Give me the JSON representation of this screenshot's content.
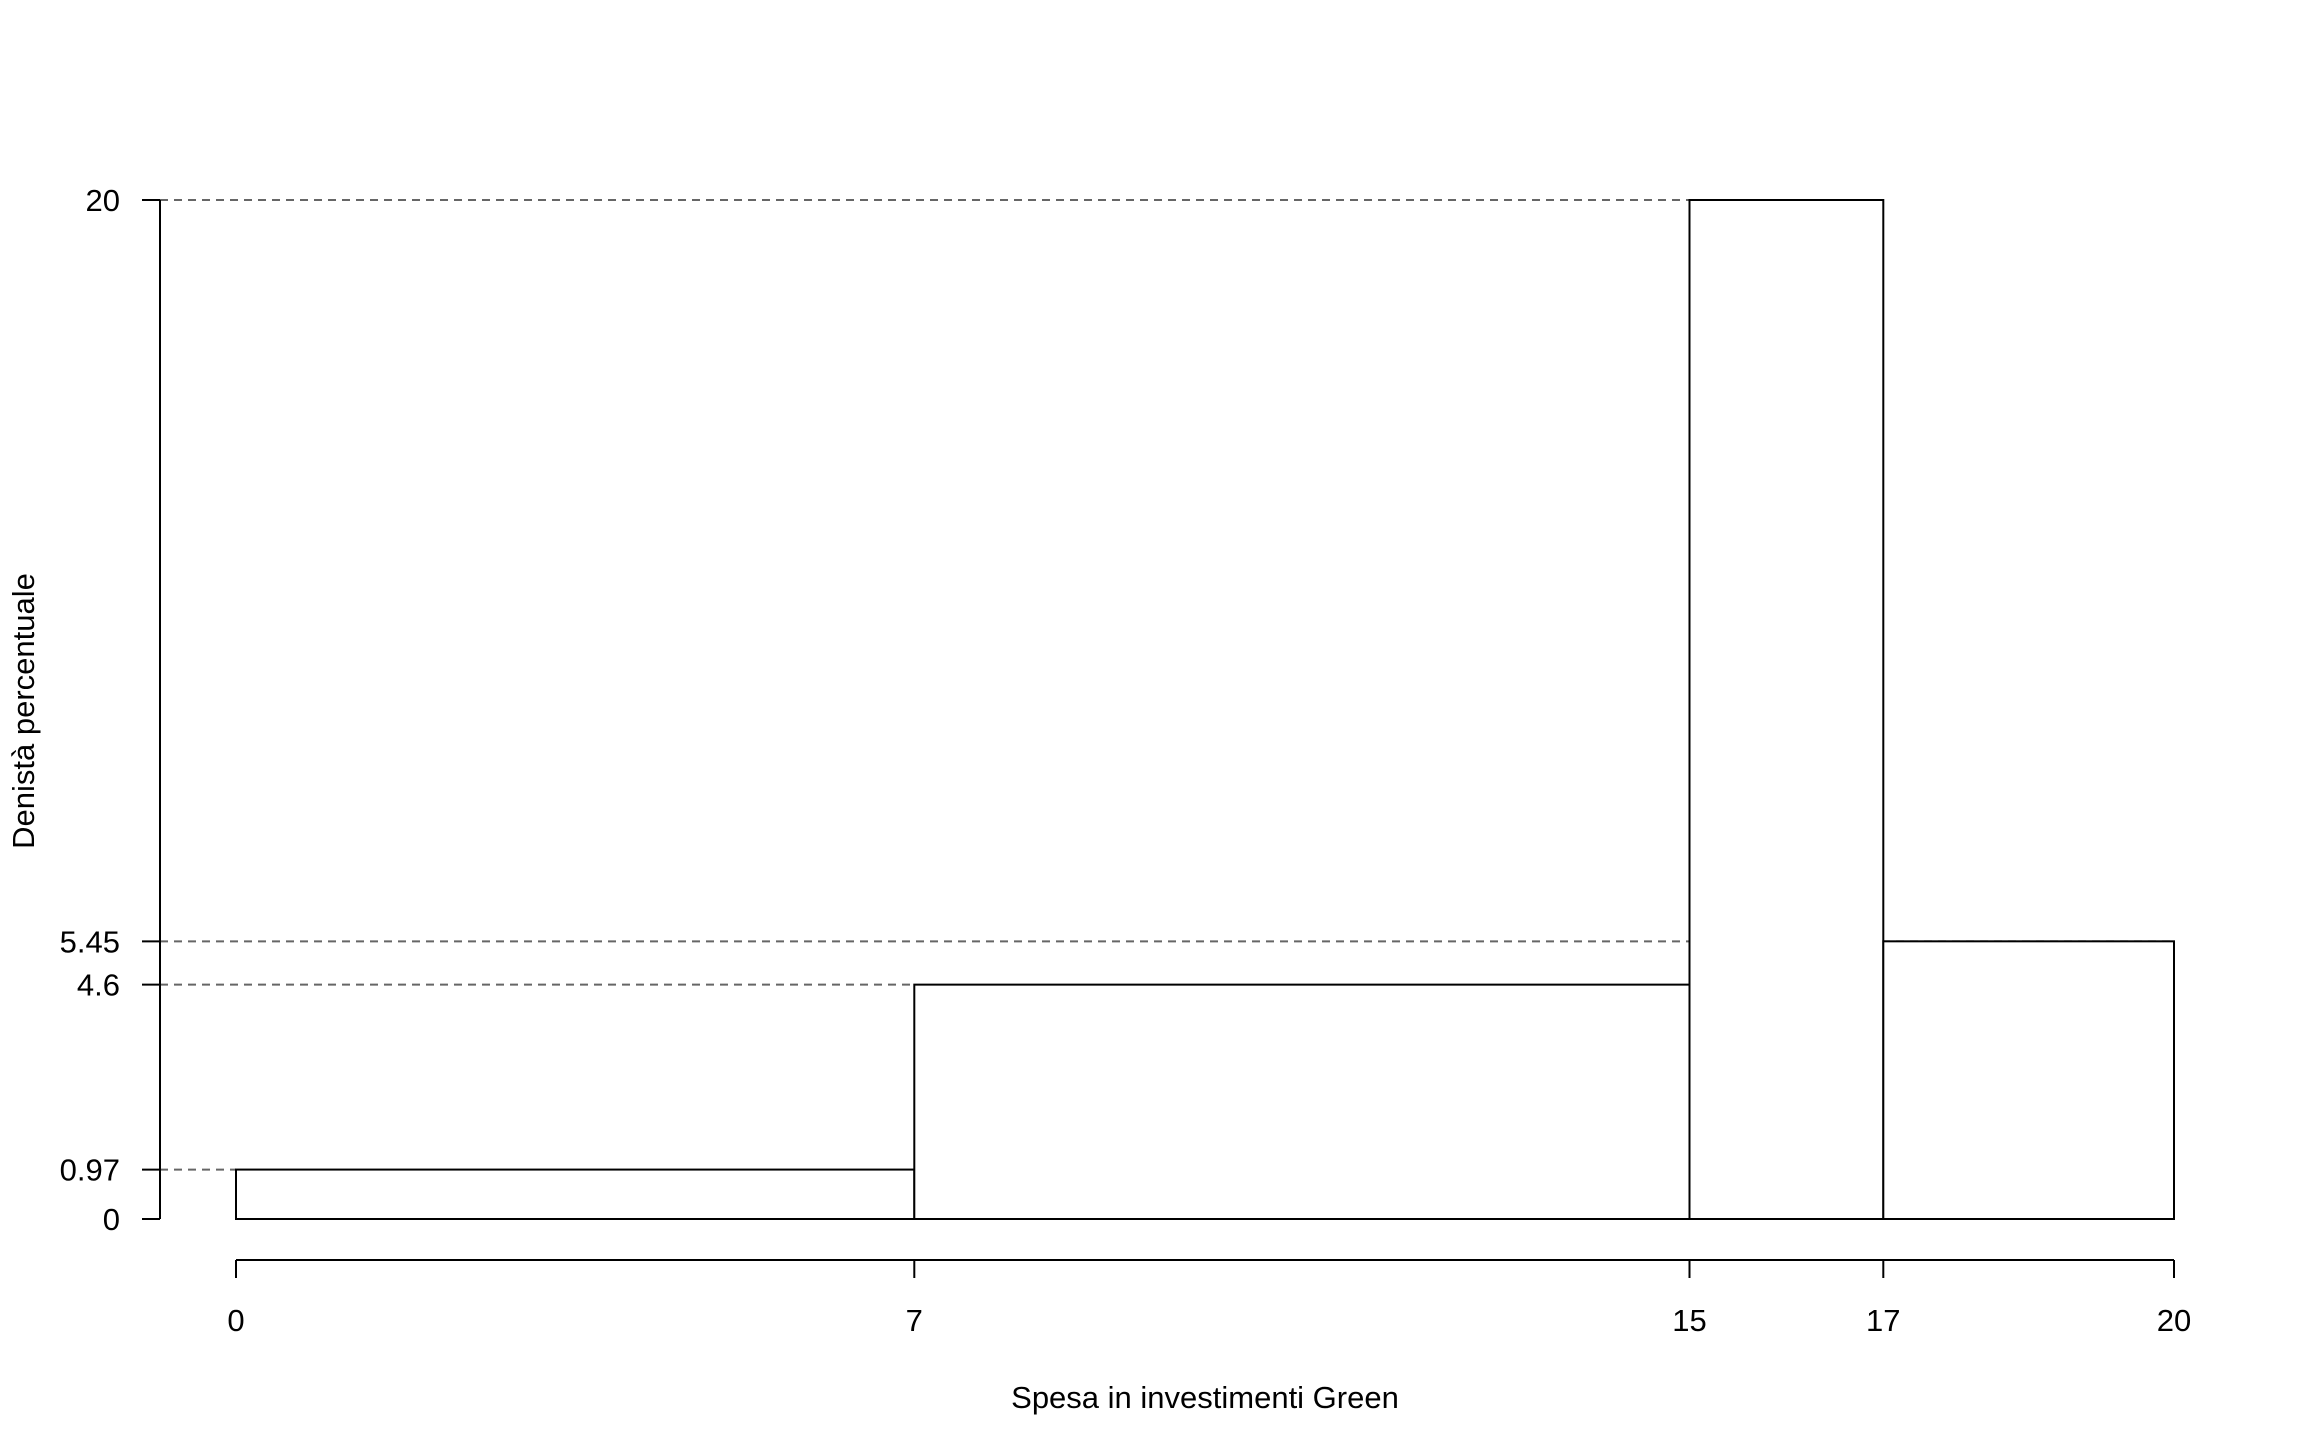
{
  "chart_data": {
    "type": "bar",
    "title": "",
    "xlabel": "Spesa in investimenti Green",
    "ylabel": "Denistà percentuale",
    "bins": [
      {
        "from": 0,
        "to": 7,
        "density": 0.97
      },
      {
        "from": 7,
        "to": 15,
        "density": 4.6
      },
      {
        "from": 15,
        "to": 17,
        "density": 20
      },
      {
        "from": 17,
        "to": 20,
        "density": 5.45
      }
    ],
    "x_ticks": [
      0,
      7,
      15,
      17,
      20
    ],
    "x_tick_labels": [
      "0",
      "7",
      "15",
      "17",
      "20"
    ],
    "y_ticks": [
      0,
      0.97,
      4.6,
      5.45,
      20
    ],
    "y_tick_labels": [
      "0",
      "0.97",
      "4.6",
      "5.45",
      "20"
    ],
    "reference_lines": [
      0.97,
      4.6,
      5.45,
      20
    ],
    "xlim": [
      0,
      20
    ],
    "ylim": [
      0,
      20
    ],
    "grid": false,
    "legend": "none",
    "colors": {
      "bar_fill": "#ffffff",
      "bar_stroke": "#000000",
      "reference_line": "#666666",
      "axis": "#000000"
    }
  }
}
